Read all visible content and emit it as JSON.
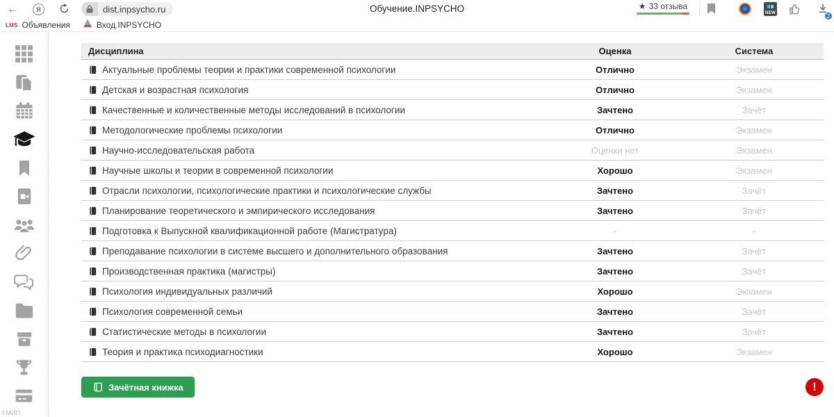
{
  "browser": {
    "url": "dist.inpsycho.ru",
    "page_title": "Обучение.INPSYCHO",
    "reviews": {
      "star": "★",
      "label": "33 отзыва"
    },
    "new_badge": "NEW",
    "download_badge": "2",
    "yandex_letter": "Я",
    "back_glyph": "←"
  },
  "bookmarks_bar": {
    "items": [
      {
        "favicon": "LMS",
        "label": "Объявления"
      },
      {
        "favicon": "triangle-logo",
        "label": "Вход.INPSYCHO"
      }
    ]
  },
  "sidebar": {
    "items": [
      {
        "name": "apps-grid"
      },
      {
        "name": "documents"
      },
      {
        "name": "calendar"
      },
      {
        "name": "graduation-cap",
        "active": true
      },
      {
        "name": "bookmark"
      },
      {
        "name": "video-file"
      },
      {
        "name": "users"
      },
      {
        "name": "paperclip"
      },
      {
        "name": "chat"
      },
      {
        "name": "folder"
      },
      {
        "name": "archive-box"
      },
      {
        "name": "trophy"
      },
      {
        "name": "payment-card"
      }
    ],
    "footer": "©МИП"
  },
  "table": {
    "headers": {
      "discipline": "Дисциплина",
      "grade": "Оценка",
      "system": "Система"
    },
    "rows": [
      {
        "discipline": "Актуальные проблемы теории и практики современной психологии",
        "grade": "Отлично",
        "grade_muted": false,
        "system": "Экзамен"
      },
      {
        "discipline": "Детская и возрастная психология",
        "grade": "Отлично",
        "grade_muted": false,
        "system": "Экзамен"
      },
      {
        "discipline": "Качественные и количественные методы исследований в психологии",
        "grade": "Зачтено",
        "grade_muted": false,
        "system": "Зачёт"
      },
      {
        "discipline": "Методологические проблемы психологии",
        "grade": "Отлично",
        "grade_muted": false,
        "system": "Экзамен"
      },
      {
        "discipline": "Научно-исследовательская работа",
        "grade": "Оценки нет",
        "grade_muted": true,
        "system": "Экзамен"
      },
      {
        "discipline": "Научные школы и теории в современной психологии",
        "grade": "Хорошо",
        "grade_muted": false,
        "system": "Экзамен"
      },
      {
        "discipline": "Отрасли психологии, психологические практики и психологические службы",
        "grade": "Зачтено",
        "grade_muted": false,
        "system": "Зачёт"
      },
      {
        "discipline": "Планирование теоретического и эмпирического исследования",
        "grade": "Зачтено",
        "grade_muted": false,
        "system": "Зачёт"
      },
      {
        "discipline": "Подготовка к Выпускной квалификационной работе (Магистратура)",
        "grade": "-",
        "grade_muted": true,
        "system": "-"
      },
      {
        "discipline": "Преподавание психологии в системе высшего и дополнительного образования",
        "grade": "Зачтено",
        "grade_muted": false,
        "system": "Зачёт"
      },
      {
        "discipline": "Производственная практика (магистры)",
        "grade": "Зачтено",
        "grade_muted": false,
        "system": "Зачёт"
      },
      {
        "discipline": "Психология индивидуальных различий",
        "grade": "Хорошо",
        "grade_muted": false,
        "system": "Экзамен"
      },
      {
        "discipline": "Психология современной семьи",
        "grade": "Зачтено",
        "grade_muted": false,
        "system": "Зачёт"
      },
      {
        "discipline": "Статистические методы в психологии",
        "grade": "Зачтено",
        "grade_muted": false,
        "system": "Зачёт"
      },
      {
        "discipline": "Теория и практика психодиагностики",
        "grade": "Хорошо",
        "grade_muted": false,
        "system": "Экзамен"
      }
    ]
  },
  "footer": {
    "gradebook_button": "Зачётная книжка",
    "alert_glyph": "!"
  },
  "colors": {
    "accent_green": "#2e9e52",
    "alert_red": "#d50000",
    "review_bar_green": "#67b168",
    "review_bar_red": "#e2574c",
    "badge_blue": "#2f7de0",
    "muted_text": "#c6c6c6",
    "row_border": "#cfcfcf",
    "header_bg": "#ededed"
  }
}
